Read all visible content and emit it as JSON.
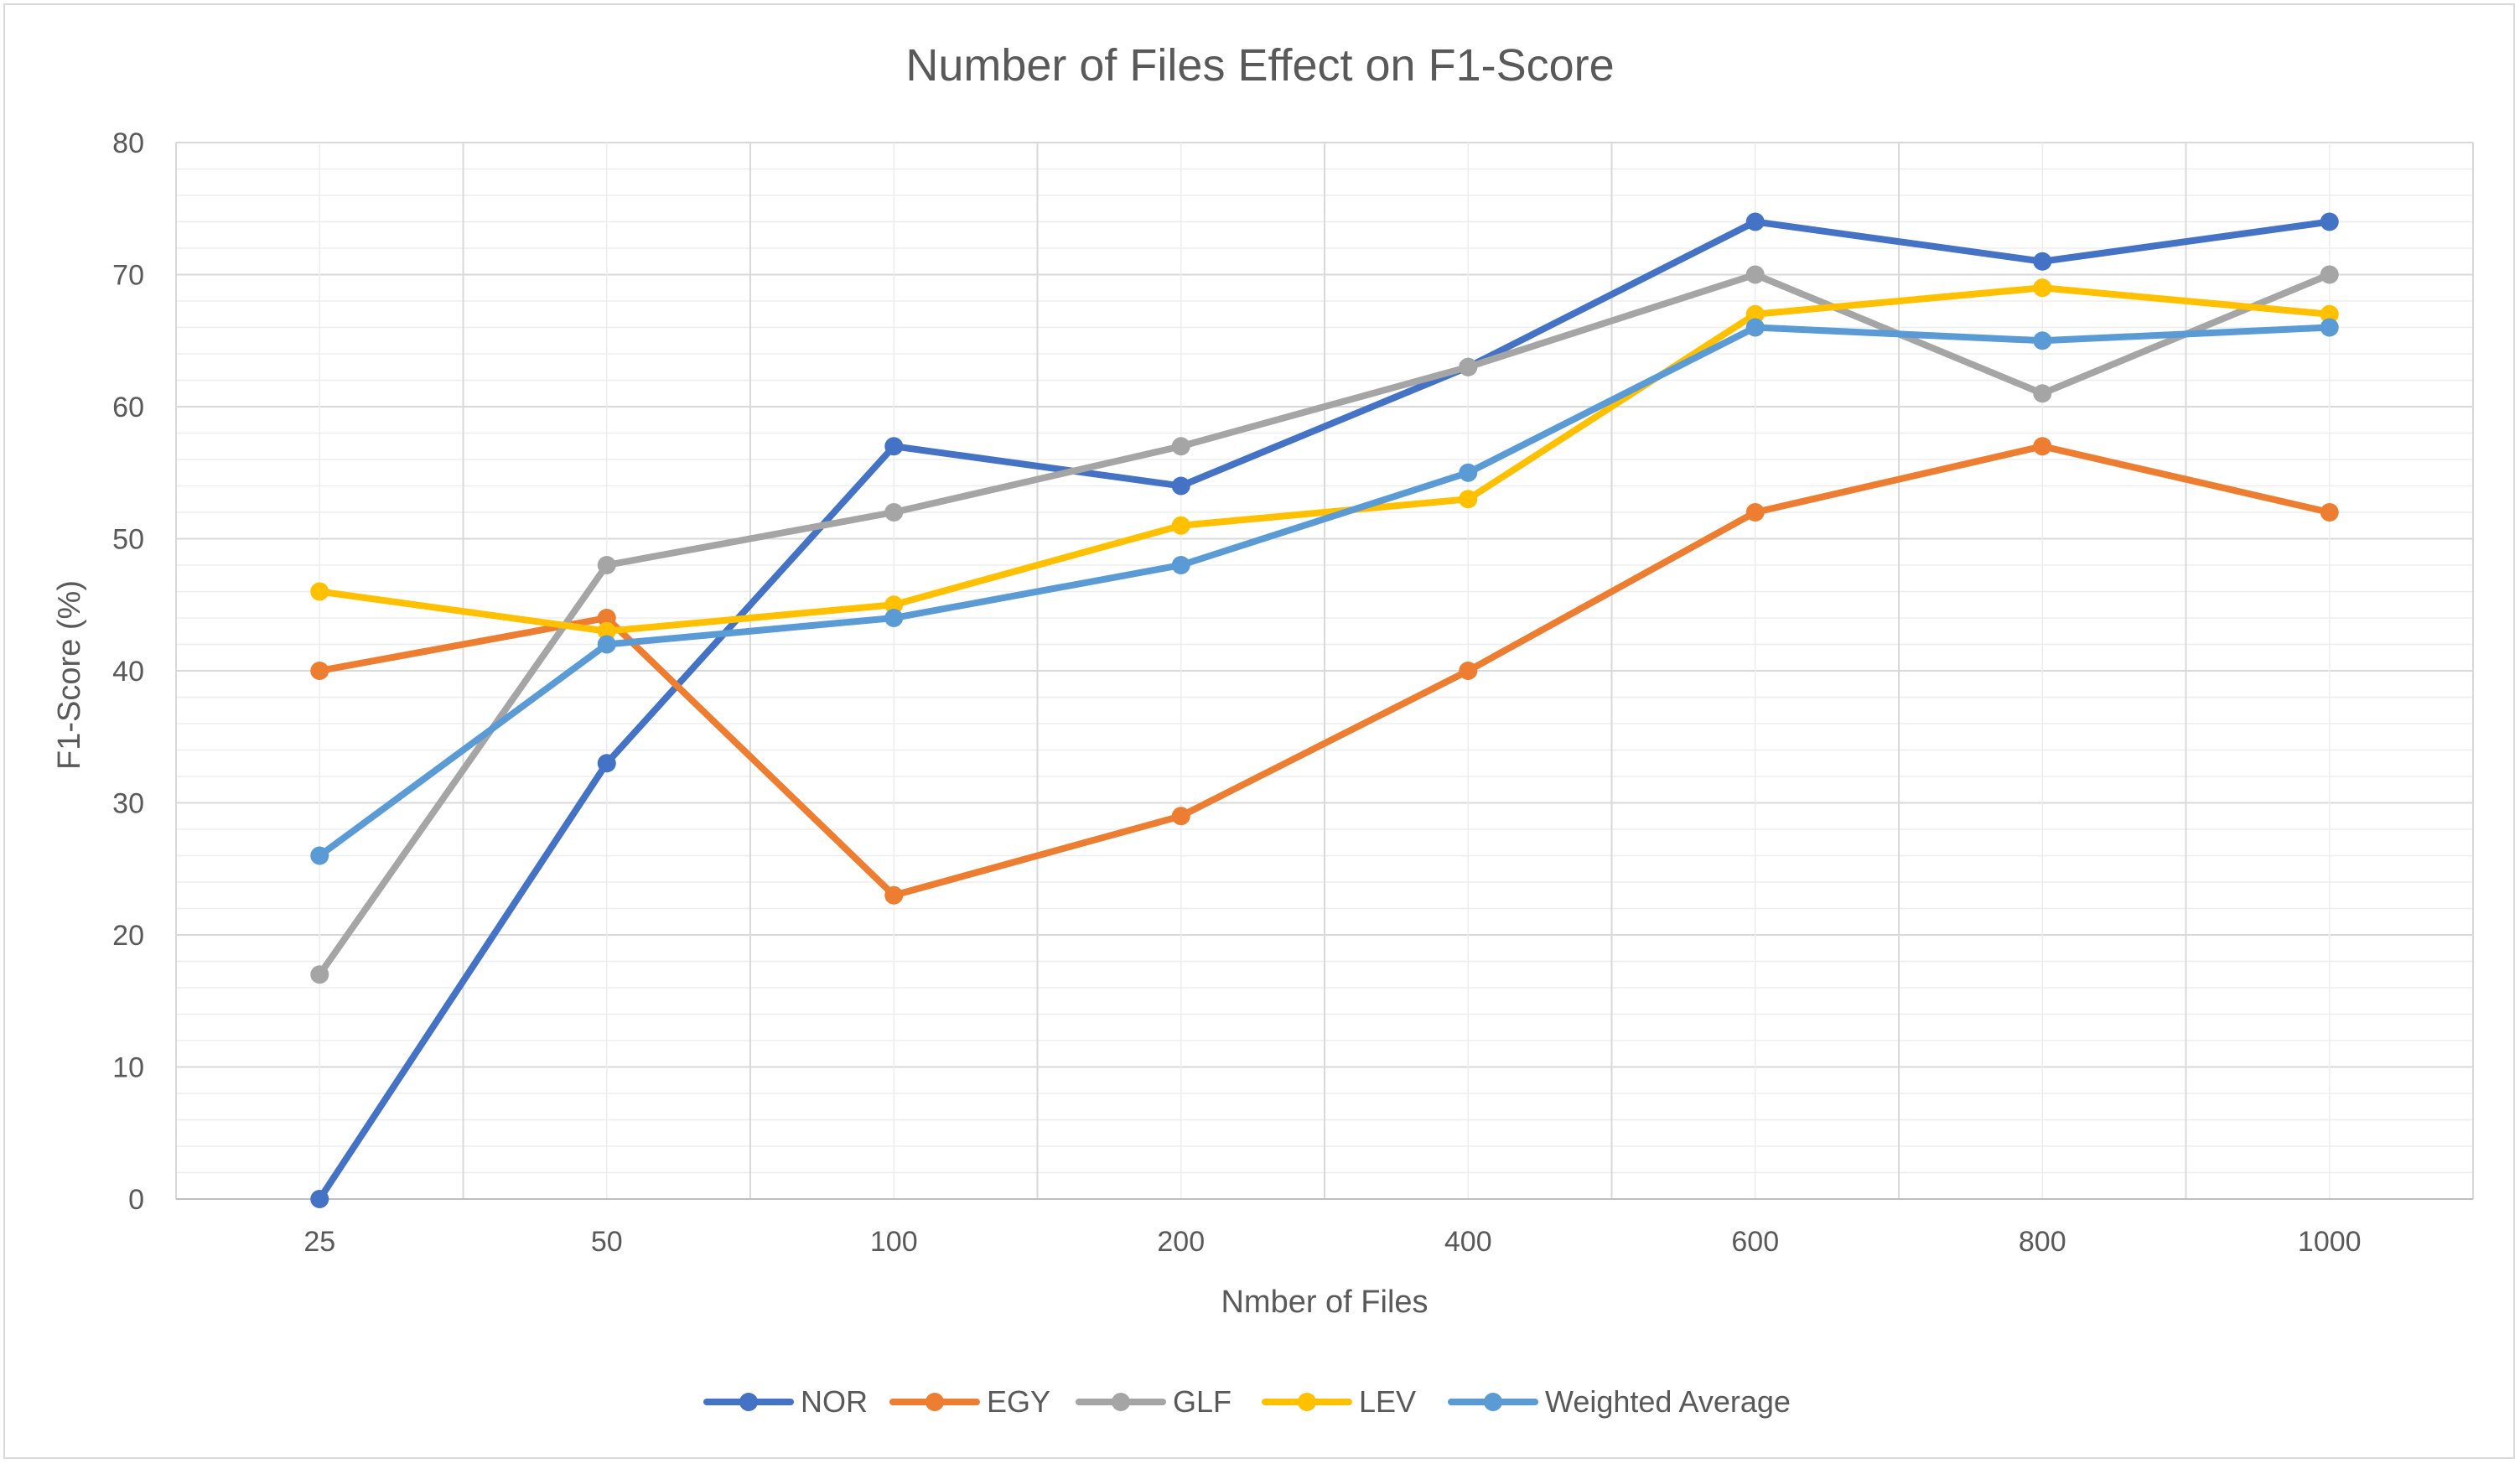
{
  "chart_data": {
    "type": "line",
    "title": "Number of Files Effect on F1-Score",
    "xlabel": "Nmber of Files",
    "ylabel": "F1-Score (%)",
    "categories": [
      "25",
      "50",
      "100",
      "200",
      "400",
      "600",
      "800",
      "1000"
    ],
    "ylim": [
      0,
      80
    ],
    "yticks": [
      "0",
      "10",
      "20",
      "30",
      "40",
      "50",
      "60",
      "70",
      "80"
    ],
    "grid": true,
    "legend_position": "bottom",
    "series": [
      {
        "name": "NOR",
        "color": "#4472C4",
        "values": [
          0,
          33,
          57,
          54,
          63,
          74,
          71,
          74
        ]
      },
      {
        "name": "EGY",
        "color": "#ED7D31",
        "values": [
          40,
          44,
          23,
          29,
          40,
          52,
          57,
          52
        ]
      },
      {
        "name": "GLF",
        "color": "#A5A5A5",
        "values": [
          17,
          48,
          52,
          57,
          63,
          70,
          61,
          70
        ]
      },
      {
        "name": "LEV",
        "color": "#FFC000",
        "values": [
          46,
          43,
          45,
          51,
          53,
          67,
          69,
          67
        ]
      },
      {
        "name": "Weighted Average",
        "color": "#5B9BD5",
        "values": [
          26,
          42,
          44,
          48,
          55,
          66,
          65,
          66
        ]
      }
    ]
  }
}
